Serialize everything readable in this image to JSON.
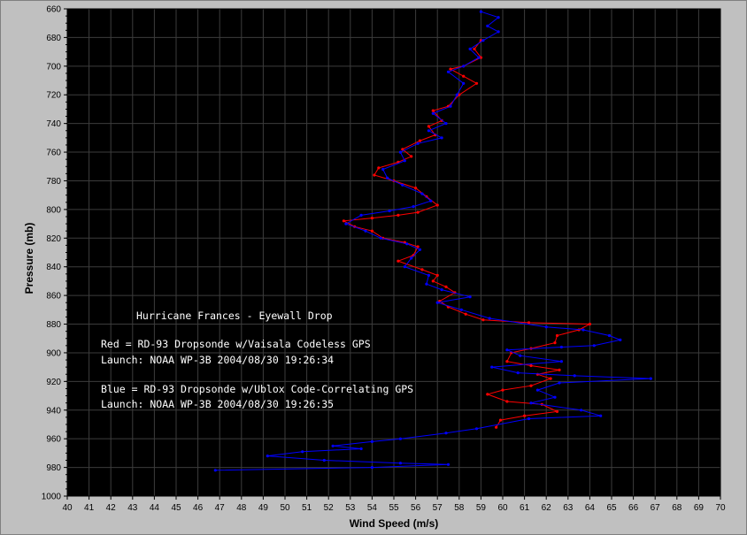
{
  "chart_data": {
    "type": "line",
    "xlabel": "Wind Speed (m/s)",
    "ylabel": "Pressure (mb)",
    "xlim": [
      40,
      70
    ],
    "ylim": [
      660,
      1000
    ],
    "y_inverted": true,
    "xticks": [
      40,
      41,
      42,
      43,
      44,
      45,
      46,
      47,
      48,
      49,
      50,
      51,
      52,
      53,
      54,
      55,
      56,
      57,
      58,
      59,
      60,
      61,
      62,
      63,
      64,
      65,
      66,
      67,
      68,
      69,
      70
    ],
    "yticks": [
      660,
      680,
      700,
      720,
      740,
      760,
      780,
      800,
      820,
      840,
      860,
      880,
      900,
      920,
      940,
      960,
      980,
      1000
    ],
    "grid": true,
    "background": "#000000",
    "frame_color": "#c0c0c0",
    "annotations": [
      "Hurricane Frances - Eyewall Drop",
      "Red = RD-93 Dropsonde w/Vaisala Codeless GPS",
      "Launch: NOAA WP-3B 2004/08/30 19:26:34",
      "Blue = RD-93 Dropsonde w/Ublox Code-Correlating GPS",
      "Launch: NOAA WP-3B 2004/08/30 19:26:35"
    ],
    "series": [
      {
        "color": "#ff0000",
        "points": [
          [
            59.0,
            682
          ],
          [
            58.7,
            688
          ],
          [
            59.0,
            694
          ],
          [
            58.2,
            700
          ],
          [
            57.6,
            702
          ],
          [
            58.2,
            707
          ],
          [
            58.8,
            712
          ],
          [
            58.0,
            720
          ],
          [
            57.5,
            728
          ],
          [
            56.8,
            731
          ],
          [
            57.2,
            738
          ],
          [
            56.6,
            742
          ],
          [
            56.9,
            748
          ],
          [
            56.2,
            752
          ],
          [
            55.4,
            758
          ],
          [
            55.8,
            763
          ],
          [
            55.2,
            767
          ],
          [
            54.3,
            771
          ],
          [
            54.1,
            776
          ],
          [
            55.0,
            780
          ],
          [
            56.0,
            785
          ],
          [
            56.5,
            791
          ],
          [
            57.0,
            797
          ],
          [
            56.1,
            802
          ],
          [
            55.2,
            804
          ],
          [
            54.0,
            806
          ],
          [
            52.7,
            808
          ],
          [
            53.2,
            812
          ],
          [
            54.0,
            815
          ],
          [
            54.5,
            820
          ],
          [
            55.5,
            823
          ],
          [
            56.1,
            826
          ],
          [
            55.9,
            832
          ],
          [
            55.2,
            836
          ],
          [
            56.3,
            842
          ],
          [
            57.0,
            846
          ],
          [
            56.8,
            850
          ],
          [
            57.4,
            854
          ],
          [
            57.8,
            858
          ],
          [
            57.1,
            864
          ],
          [
            57.5,
            868
          ],
          [
            58.3,
            873
          ],
          [
            59.1,
            877
          ],
          [
            61.2,
            879
          ],
          [
            64.0,
            880
          ],
          [
            63.5,
            884
          ],
          [
            62.5,
            888
          ],
          [
            62.4,
            893
          ],
          [
            61.3,
            897
          ],
          [
            60.4,
            900
          ],
          [
            60.2,
            906
          ],
          [
            61.3,
            909
          ],
          [
            62.6,
            912
          ],
          [
            61.6,
            915
          ],
          [
            62.2,
            918
          ],
          [
            61.3,
            923
          ],
          [
            60.0,
            926
          ],
          [
            59.3,
            929
          ],
          [
            60.2,
            934
          ],
          [
            61.8,
            936
          ],
          [
            62.5,
            941
          ],
          [
            61.0,
            944
          ],
          [
            59.9,
            947
          ],
          [
            59.7,
            952
          ]
        ]
      },
      {
        "color": "#0000ff",
        "points": [
          [
            59.0,
            662
          ],
          [
            59.8,
            666
          ],
          [
            59.3,
            672
          ],
          [
            59.8,
            676
          ],
          [
            59.1,
            682
          ],
          [
            58.5,
            688
          ],
          [
            58.9,
            694
          ],
          [
            58.2,
            700
          ],
          [
            57.5,
            704
          ],
          [
            58.2,
            712
          ],
          [
            57.9,
            720
          ],
          [
            57.6,
            728
          ],
          [
            56.8,
            733
          ],
          [
            57.4,
            740
          ],
          [
            56.6,
            745
          ],
          [
            57.2,
            750
          ],
          [
            56.1,
            754
          ],
          [
            55.3,
            760
          ],
          [
            55.5,
            766
          ],
          [
            54.5,
            772
          ],
          [
            54.7,
            778
          ],
          [
            55.4,
            783
          ],
          [
            56.3,
            789
          ],
          [
            56.7,
            794
          ],
          [
            55.9,
            798
          ],
          [
            54.8,
            801
          ],
          [
            53.5,
            804
          ],
          [
            52.8,
            810
          ],
          [
            53.7,
            815
          ],
          [
            54.4,
            820
          ],
          [
            55.6,
            824
          ],
          [
            56.2,
            828
          ],
          [
            55.8,
            834
          ],
          [
            55.5,
            840
          ],
          [
            56.6,
            846
          ],
          [
            56.5,
            852
          ],
          [
            57.2,
            856
          ],
          [
            58.5,
            861
          ],
          [
            57.0,
            865
          ],
          [
            58.1,
            870
          ],
          [
            59.4,
            876
          ],
          [
            62.0,
            882
          ],
          [
            63.7,
            884
          ],
          [
            64.9,
            888
          ],
          [
            65.4,
            891
          ],
          [
            64.2,
            895
          ],
          [
            62.7,
            896
          ],
          [
            60.2,
            898
          ],
          [
            60.8,
            902
          ],
          [
            62.7,
            906
          ],
          [
            59.5,
            910
          ],
          [
            60.7,
            914
          ],
          [
            63.3,
            916
          ],
          [
            66.8,
            918
          ],
          [
            62.6,
            921
          ],
          [
            61.6,
            926
          ],
          [
            62.4,
            931
          ],
          [
            61.3,
            935
          ],
          [
            63.6,
            940
          ],
          [
            64.5,
            944
          ],
          [
            61.2,
            946
          ],
          [
            58.8,
            953
          ],
          [
            57.4,
            956
          ],
          [
            55.3,
            960
          ],
          [
            54.0,
            962
          ],
          [
            52.2,
            965
          ],
          [
            53.5,
            967
          ],
          [
            50.8,
            969
          ],
          [
            49.2,
            972
          ],
          [
            51.8,
            975
          ],
          [
            55.3,
            977
          ],
          [
            57.5,
            978
          ],
          [
            54.0,
            980
          ],
          [
            46.8,
            982
          ]
        ]
      }
    ]
  }
}
